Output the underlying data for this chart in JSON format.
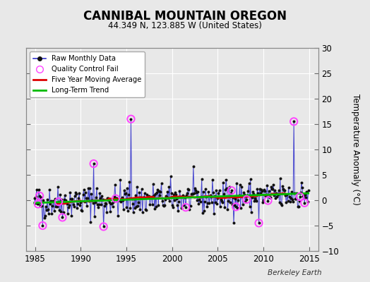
{
  "title": "CANNIBAL MOUNTAIN OREGON",
  "subtitle": "44.349 N, 123.885 W (United States)",
  "ylabel_right": "Temperature Anomaly (°C)",
  "attribution": "Berkeley Earth",
  "xlim": [
    1984.0,
    2016.0
  ],
  "ylim": [
    -10,
    30
  ],
  "yticks": [
    -10,
    -5,
    0,
    5,
    10,
    15,
    20,
    25,
    30
  ],
  "xticks": [
    1985,
    1990,
    1995,
    2000,
    2005,
    2010,
    2015
  ],
  "fig_bg": "#e8e8e8",
  "plot_bg": "#e8e8e8",
  "grid_color": "#ffffff",
  "raw_line_color": "#3333cc",
  "raw_dot_color": "#111111",
  "qc_fail_color": "#ff44ff",
  "moving_avg_color": "#dd0000",
  "trend_color": "#00bb00",
  "seed": 42,
  "x_start": 1984.917,
  "x_end": 2014.917,
  "n_months": 361
}
